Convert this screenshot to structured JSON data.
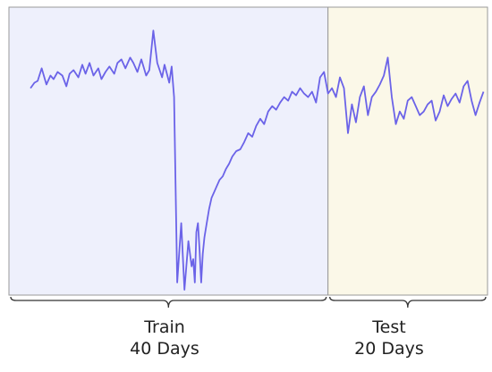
{
  "chart_data": {
    "type": "line",
    "title": "",
    "xlabel": "",
    "ylabel": "",
    "axes_visible": false,
    "grid": false,
    "regions": [
      {
        "name": "Train",
        "duration": "40 Days",
        "x_range": [
          0,
          40
        ],
        "fill": "#eef0fc"
      },
      {
        "name": "Test",
        "duration": "20 Days",
        "x_range": [
          40,
          60
        ],
        "fill": "#fbf8e8"
      }
    ],
    "series": [
      {
        "color": "#6b63e8",
        "x": [
          2.7,
          3.2,
          3.6,
          4.1,
          4.7,
          5.2,
          5.6,
          6.1,
          6.7,
          7.2,
          7.6,
          8.1,
          8.7,
          9.2,
          9.6,
          10.1,
          10.6,
          11.2,
          11.6,
          12.1,
          12.6,
          13.2,
          13.6,
          14.1,
          14.6,
          15.2,
          15.6,
          16.1,
          16.6,
          17.2,
          17.6,
          18.1,
          18.6,
          19.2,
          19.5,
          19.8,
          20.1,
          20.4,
          20.7,
          21.1,
          21.6,
          22.0,
          22.5,
          22.9,
          23.1,
          23.3,
          23.5,
          23.7,
          23.9,
          24.1,
          24.3,
          24.5,
          24.8,
          25.1,
          25.4,
          25.7,
          26.0,
          26.4,
          26.8,
          27.2,
          27.6,
          28.0,
          28.5,
          29.0,
          29.5,
          30.0,
          30.5,
          31.0,
          31.5,
          32.0,
          32.5,
          33.0,
          33.5,
          34.0,
          34.5,
          35.0,
          35.5,
          36.0,
          36.5,
          37.0,
          37.5,
          38.0,
          38.5,
          39.0,
          39.5,
          40.0,
          40.5,
          41.0,
          41.5,
          42.0,
          42.5,
          43.0,
          43.5,
          44.0,
          44.5,
          45.0,
          45.5,
          46.0,
          46.5,
          47.0,
          47.5,
          48.0,
          48.5,
          49.0,
          49.5,
          50.0,
          50.5,
          51.0,
          51.5,
          52.0,
          52.5,
          53.0,
          53.5,
          54.0,
          54.5,
          55.0,
          55.5,
          56.0,
          56.5,
          57.0,
          57.5,
          58.0,
          58.5,
          59.0,
          59.5
        ],
        "y": [
          0.65,
          0.68,
          0.69,
          0.76,
          0.67,
          0.72,
          0.7,
          0.74,
          0.72,
          0.66,
          0.73,
          0.75,
          0.71,
          0.78,
          0.73,
          0.79,
          0.72,
          0.76,
          0.7,
          0.74,
          0.77,
          0.73,
          0.79,
          0.81,
          0.76,
          0.82,
          0.79,
          0.74,
          0.81,
          0.72,
          0.75,
          0.97,
          0.79,
          0.71,
          0.78,
          0.73,
          0.68,
          0.77,
          0.6,
          -0.43,
          -0.1,
          -0.47,
          -0.2,
          -0.34,
          -0.3,
          -0.43,
          -0.15,
          -0.1,
          -0.25,
          -0.43,
          -0.27,
          -0.18,
          -0.1,
          -0.02,
          0.04,
          0.07,
          0.1,
          0.14,
          0.16,
          0.2,
          0.23,
          0.27,
          0.3,
          0.31,
          0.35,
          0.4,
          0.38,
          0.44,
          0.48,
          0.45,
          0.52,
          0.55,
          0.53,
          0.57,
          0.6,
          0.58,
          0.63,
          0.61,
          0.65,
          0.62,
          0.6,
          0.63,
          0.57,
          0.71,
          0.74,
          0.62,
          0.65,
          0.6,
          0.71,
          0.65,
          0.4,
          0.56,
          0.46,
          0.6,
          0.66,
          0.5,
          0.6,
          0.63,
          0.67,
          0.72,
          0.82,
          0.6,
          0.45,
          0.52,
          0.48,
          0.58,
          0.6,
          0.55,
          0.5,
          0.52,
          0.56,
          0.58,
          0.47,
          0.52,
          0.61,
          0.55,
          0.59,
          0.62,
          0.57,
          0.66,
          0.69,
          0.58,
          0.5,
          0.57,
          0.63
        ]
      }
    ],
    "ylim": [
      -0.5,
      1.1
    ],
    "xlim": [
      0,
      60
    ]
  },
  "labels": {
    "train_name": "Train",
    "train_duration": "40 Days",
    "test_name": "Test",
    "test_duration": "20 Days"
  }
}
